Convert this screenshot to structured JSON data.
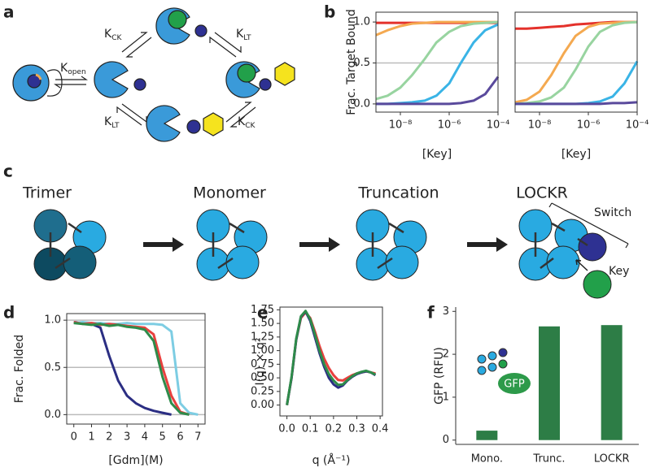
{
  "panel_labels": [
    "a",
    "b",
    "c",
    "d",
    "e",
    "f"
  ],
  "diagram_a": {
    "constants": [
      {
        "symbol": "K",
        "subscript": "open"
      },
      {
        "symbol": "K",
        "subscript": "CK"
      },
      {
        "symbol": "K",
        "subscript": "LT"
      },
      {
        "symbol": "K",
        "subscript": "LT"
      },
      {
        "symbol": "K",
        "subscript": "CK"
      }
    ]
  },
  "diagram_c": {
    "stages": [
      "Trimer",
      "Monomer",
      "Truncation",
      "LOCKR"
    ],
    "switch_label": "Switch",
    "key_label": "Key"
  },
  "inset_f": {
    "label": "GFP"
  },
  "chart_data": [
    {
      "type": "line",
      "ylabel": "Frac. Target Bound",
      "xlabel": "[Key]",
      "log_x": true,
      "x": [
        1e-09,
        3e-09,
        1e-08,
        3e-08,
        1e-07,
        3e-07,
        1e-06,
        3e-06,
        1e-05,
        3e-05,
        0.0001
      ],
      "xlim": [
        1e-09,
        0.0001
      ],
      "xticks": [
        {
          "value": 1e-08,
          "label": "10⁻⁸"
        },
        {
          "value": 1e-06,
          "label": "10⁻⁶"
        },
        {
          "value": 0.0001,
          "label": "10⁻⁴"
        }
      ],
      "ylim": [
        -0.1,
        1.12
      ],
      "yticks": [
        {
          "value": 0,
          "label": "0.0"
        },
        {
          "value": 0.5,
          "label": "0.5"
        },
        {
          "value": 1,
          "label": "1.0"
        }
      ],
      "reference_lines": [
        0.5
      ],
      "series": [
        {
          "color": "#e4312b",
          "values": [
            0.99,
            0.99,
            0.99,
            0.99,
            0.99,
            0.99,
            0.99,
            0.99,
            0.99,
            0.99,
            0.99
          ]
        },
        {
          "color": "#f4a950",
          "values": [
            0.84,
            0.9,
            0.95,
            0.98,
            0.99,
            1,
            1,
            1,
            1,
            1,
            1
          ]
        },
        {
          "color": "#98d4a0",
          "values": [
            0.06,
            0.1,
            0.2,
            0.35,
            0.55,
            0.75,
            0.88,
            0.95,
            0.98,
            0.99,
            1
          ]
        },
        {
          "color": "#3ab4e6",
          "values": [
            0,
            0,
            0.01,
            0.02,
            0.04,
            0.1,
            0.25,
            0.5,
            0.75,
            0.9,
            0.97
          ]
        },
        {
          "color": "#5a4a9c",
          "values": [
            0,
            0,
            0,
            0,
            0,
            0,
            0,
            0.01,
            0.04,
            0.12,
            0.33
          ]
        }
      ]
    },
    {
      "type": "line",
      "xlabel": "[Key]",
      "log_x": true,
      "x": [
        1e-09,
        3e-09,
        1e-08,
        3e-08,
        1e-07,
        3e-07,
        1e-06,
        3e-06,
        1e-05,
        3e-05,
        0.0001
      ],
      "xlim": [
        1e-09,
        0.0001
      ],
      "xticks": [
        {
          "value": 1e-08,
          "label": "10⁻⁸"
        },
        {
          "value": 1e-06,
          "label": "10⁻⁶"
        },
        {
          "value": 0.0001,
          "label": "10⁻⁴"
        }
      ],
      "ylim": [
        -0.1,
        1.12
      ],
      "reference_lines": [
        0.5
      ],
      "series": [
        {
          "color": "#e4312b",
          "values": [
            0.92,
            0.92,
            0.93,
            0.94,
            0.95,
            0.97,
            0.98,
            0.99,
            1,
            1,
            1
          ]
        },
        {
          "color": "#f4a950",
          "values": [
            0.02,
            0.05,
            0.15,
            0.35,
            0.62,
            0.83,
            0.94,
            0.98,
            0.99,
            1,
            1
          ]
        },
        {
          "color": "#98d4a0",
          "values": [
            0,
            0.01,
            0.03,
            0.08,
            0.2,
            0.42,
            0.7,
            0.88,
            0.96,
            0.99,
            1
          ]
        },
        {
          "color": "#3ab4e6",
          "values": [
            0,
            0,
            0,
            0,
            0,
            0,
            0.01,
            0.03,
            0.09,
            0.25,
            0.52
          ]
        },
        {
          "color": "#5a4a9c",
          "values": [
            0,
            0,
            0,
            0,
            0,
            0,
            0,
            0,
            0.01,
            0.01,
            0.02
          ]
        }
      ]
    },
    {
      "type": "line",
      "ylabel": "Frac. Folded",
      "xlabel": "[Gdm](M)",
      "x": [
        0,
        0.5,
        1,
        1.5,
        2,
        2.5,
        3,
        3.5,
        4,
        4.5,
        5,
        5.5,
        6,
        6.5,
        7
      ],
      "xlim": [
        -0.4,
        7.4
      ],
      "xticks": [
        0,
        1,
        2,
        3,
        4,
        5,
        6,
        7
      ],
      "ylim": [
        -0.1,
        1.07
      ],
      "yticks": [
        {
          "value": 0,
          "label": "0.0"
        },
        {
          "value": 0.5,
          "label": "0.5"
        },
        {
          "value": 1,
          "label": "1.0"
        }
      ],
      "grid": true,
      "series": [
        {
          "color": "#2b2e83",
          "values": [
            0.98,
            0.97,
            0.96,
            0.92,
            0.62,
            0.36,
            0.2,
            0.12,
            0.07,
            0.04,
            0.02,
            0,
            null,
            null,
            null
          ]
        },
        {
          "color": "#7dcde3",
          "values": [
            0.97,
            0.98,
            0.97,
            0.97,
            0.96,
            0.96,
            0.97,
            0.96,
            0.96,
            0.96,
            0.95,
            0.88,
            0.12,
            0.02,
            0
          ]
        },
        {
          "color": "#e8403e",
          "values": [
            0.98,
            0.96,
            0.97,
            0.95,
            0.96,
            0.95,
            0.94,
            0.93,
            0.92,
            0.85,
            0.5,
            0.2,
            0.03,
            0,
            null
          ]
        },
        {
          "color": "#2e8b4a",
          "values": [
            0.97,
            0.96,
            0.95,
            0.96,
            0.94,
            0.95,
            0.93,
            0.92,
            0.9,
            0.78,
            0.4,
            0.12,
            0.02,
            0,
            null
          ]
        }
      ]
    },
    {
      "type": "line",
      "ylabel": "I(q) × q²",
      "xlabel": "q (Å⁻¹)",
      "x": [
        0,
        0.02,
        0.04,
        0.06,
        0.08,
        0.1,
        0.12,
        0.14,
        0.16,
        0.18,
        0.2,
        0.22,
        0.24,
        0.26,
        0.28,
        0.3,
        0.32,
        0.34,
        0.36,
        0.38
      ],
      "xlim": [
        -0.03,
        0.41
      ],
      "xticks": [
        {
          "value": 0,
          "label": "0.0"
        },
        0.1,
        0.2,
        0.3,
        0.4
      ],
      "ylim": [
        -0.2,
        1.8
      ],
      "yticks": [
        {
          "value": 0,
          "label": "0.00"
        },
        0.25,
        {
          "value": 0.5,
          "label": "0.50"
        },
        0.75,
        {
          "value": 1,
          "label": "1.00"
        },
        1.25,
        {
          "value": 1.5,
          "label": "1.50"
        },
        1.75
      ],
      "series": [
        {
          "color": "#e8403e",
          "values": [
            0,
            0.5,
            1.2,
            1.6,
            1.7,
            1.6,
            1.35,
            1.08,
            0.85,
            0.68,
            0.55,
            0.46,
            0.45,
            0.5,
            0.55,
            0.58,
            0.6,
            0.62,
            0.6,
            0.58
          ]
        },
        {
          "color": "#2b2e83",
          "values": [
            0,
            0.5,
            1.2,
            1.62,
            1.72,
            1.55,
            1.25,
            0.95,
            0.7,
            0.5,
            0.38,
            0.32,
            0.36,
            0.45,
            0.52,
            0.57,
            0.6,
            0.62,
            0.6,
            0.55
          ]
        },
        {
          "color": "#2e8b4a",
          "values": [
            0,
            0.52,
            1.22,
            1.63,
            1.73,
            1.58,
            1.3,
            1,
            0.75,
            0.57,
            0.45,
            0.37,
            0.38,
            0.46,
            0.53,
            0.58,
            0.61,
            0.63,
            0.6,
            0.56
          ]
        }
      ]
    },
    {
      "type": "bar",
      "ylabel": "GFP (RFU)",
      "categories": [
        "Mono.",
        "Trunc.",
        "LOCKR"
      ],
      "values": [
        0.22,
        2.65,
        2.68
      ],
      "color": "#2d7d46",
      "ylim": [
        -0.1,
        3.1
      ],
      "yticks": [
        0,
        1,
        2,
        3
      ]
    }
  ]
}
